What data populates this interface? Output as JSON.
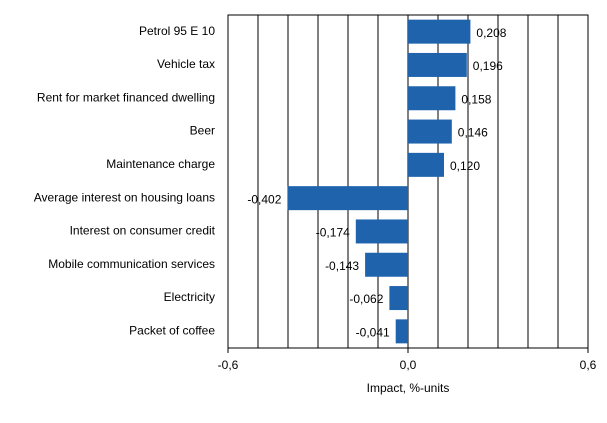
{
  "chart_data": {
    "type": "hbar",
    "categories": [
      "Petrol 95 E 10",
      "Vehicle tax",
      "Rent for market financed dwelling",
      "Beer",
      "Maintenance charge",
      "Average interest on housing loans",
      "Interest on consumer credit",
      "Mobile communication services",
      "Electricity",
      "Packet of coffee"
    ],
    "values": [
      0.208,
      0.196,
      0.158,
      0.146,
      0.12,
      -0.402,
      -0.174,
      -0.143,
      -0.062,
      -0.041
    ],
    "value_labels": [
      "0,208",
      "0,196",
      "0,158",
      "0,146",
      "0,120",
      "-0,402",
      "-0,174",
      "-0,143",
      "-0,062",
      "-0,041"
    ],
    "color": "#1f63ad",
    "xlabel": "Impact, %-units",
    "xlim": [
      -0.6,
      0.6
    ],
    "xticks": [
      {
        "value": -0.6,
        "label": "-0,6"
      },
      {
        "value": 0,
        "label": "0,0"
      },
      {
        "value": 0.6,
        "label": "0,6"
      }
    ],
    "xgrid": [
      -0.5,
      -0.4,
      -0.3,
      -0.2,
      -0.1,
      0,
      0.1,
      0.2,
      0.3,
      0.4,
      0.5
    ],
    "grid": true
  }
}
